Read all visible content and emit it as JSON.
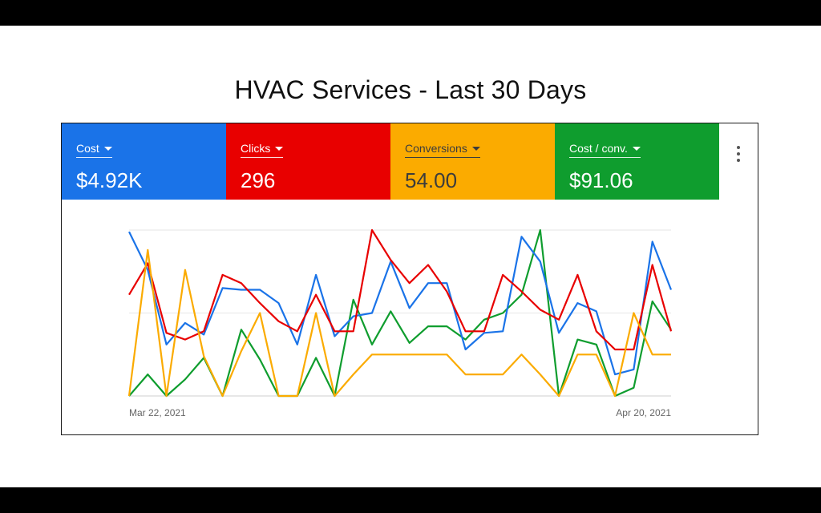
{
  "slide": {
    "title": "HVAC Services - Last 30 Days"
  },
  "metrics": [
    {
      "name": "Cost",
      "value": "$4.92K",
      "color": "#1a73e8"
    },
    {
      "name": "Clicks",
      "value": "296",
      "color": "#e80000"
    },
    {
      "name": "Conversions",
      "value": "54.00",
      "color": "#fbab00"
    },
    {
      "name": "Cost / conv.",
      "value": "$91.06",
      "color": "#0f9d2e"
    }
  ],
  "chart_data": {
    "type": "line",
    "x_start": "Mar 22, 2021",
    "x_end": "Apr 20, 2021",
    "x_tick_labels": [
      "Mar 22, 2021",
      "Apr 20, 2021"
    ],
    "grid": true,
    "legend": "none",
    "y_scale": "independent per series, 0 to 1 normalized",
    "series": [
      {
        "name": "Cost",
        "color": "#1a73e8",
        "values": [
          0.99,
          0.76,
          0.31,
          0.44,
          0.37,
          0.65,
          0.64,
          0.64,
          0.56,
          0.31,
          0.73,
          0.36,
          0.48,
          0.5,
          0.81,
          0.53,
          0.68,
          0.68,
          0.28,
          0.38,
          0.39,
          0.96,
          0.81,
          0.38,
          0.56,
          0.51,
          0.13,
          0.16,
          0.93,
          0.64
        ]
      },
      {
        "name": "Clicks",
        "color": "#e80000",
        "values": [
          0.61,
          0.8,
          0.38,
          0.34,
          0.39,
          0.73,
          0.68,
          0.56,
          0.45,
          0.39,
          0.61,
          0.39,
          0.39,
          1.0,
          0.82,
          0.68,
          0.79,
          0.63,
          0.39,
          0.39,
          0.73,
          0.63,
          0.52,
          0.46,
          0.73,
          0.39,
          0.28,
          0.28,
          0.79,
          0.39
        ]
      },
      {
        "name": "Conversions",
        "color": "#fbab00",
        "values": [
          0.0,
          0.88,
          0.0,
          0.76,
          0.24,
          0.0,
          0.27,
          0.5,
          0.0,
          0.0,
          0.5,
          0.0,
          0.13,
          0.25,
          0.25,
          0.25,
          0.25,
          0.25,
          0.13,
          0.13,
          0.13,
          0.25,
          0.13,
          0.0,
          0.25,
          0.25,
          0.0,
          0.5,
          0.25,
          0.25
        ]
      },
      {
        "name": "Cost / conv.",
        "color": "#0f9d2e",
        "values": [
          0.0,
          0.13,
          0.0,
          0.1,
          0.23,
          0.0,
          0.4,
          0.22,
          0.0,
          0.0,
          0.23,
          0.0,
          0.58,
          0.31,
          0.51,
          0.32,
          0.42,
          0.42,
          0.34,
          0.46,
          0.5,
          0.61,
          1.0,
          0.0,
          0.34,
          0.31,
          0.0,
          0.05,
          0.57,
          0.4
        ]
      }
    ]
  }
}
